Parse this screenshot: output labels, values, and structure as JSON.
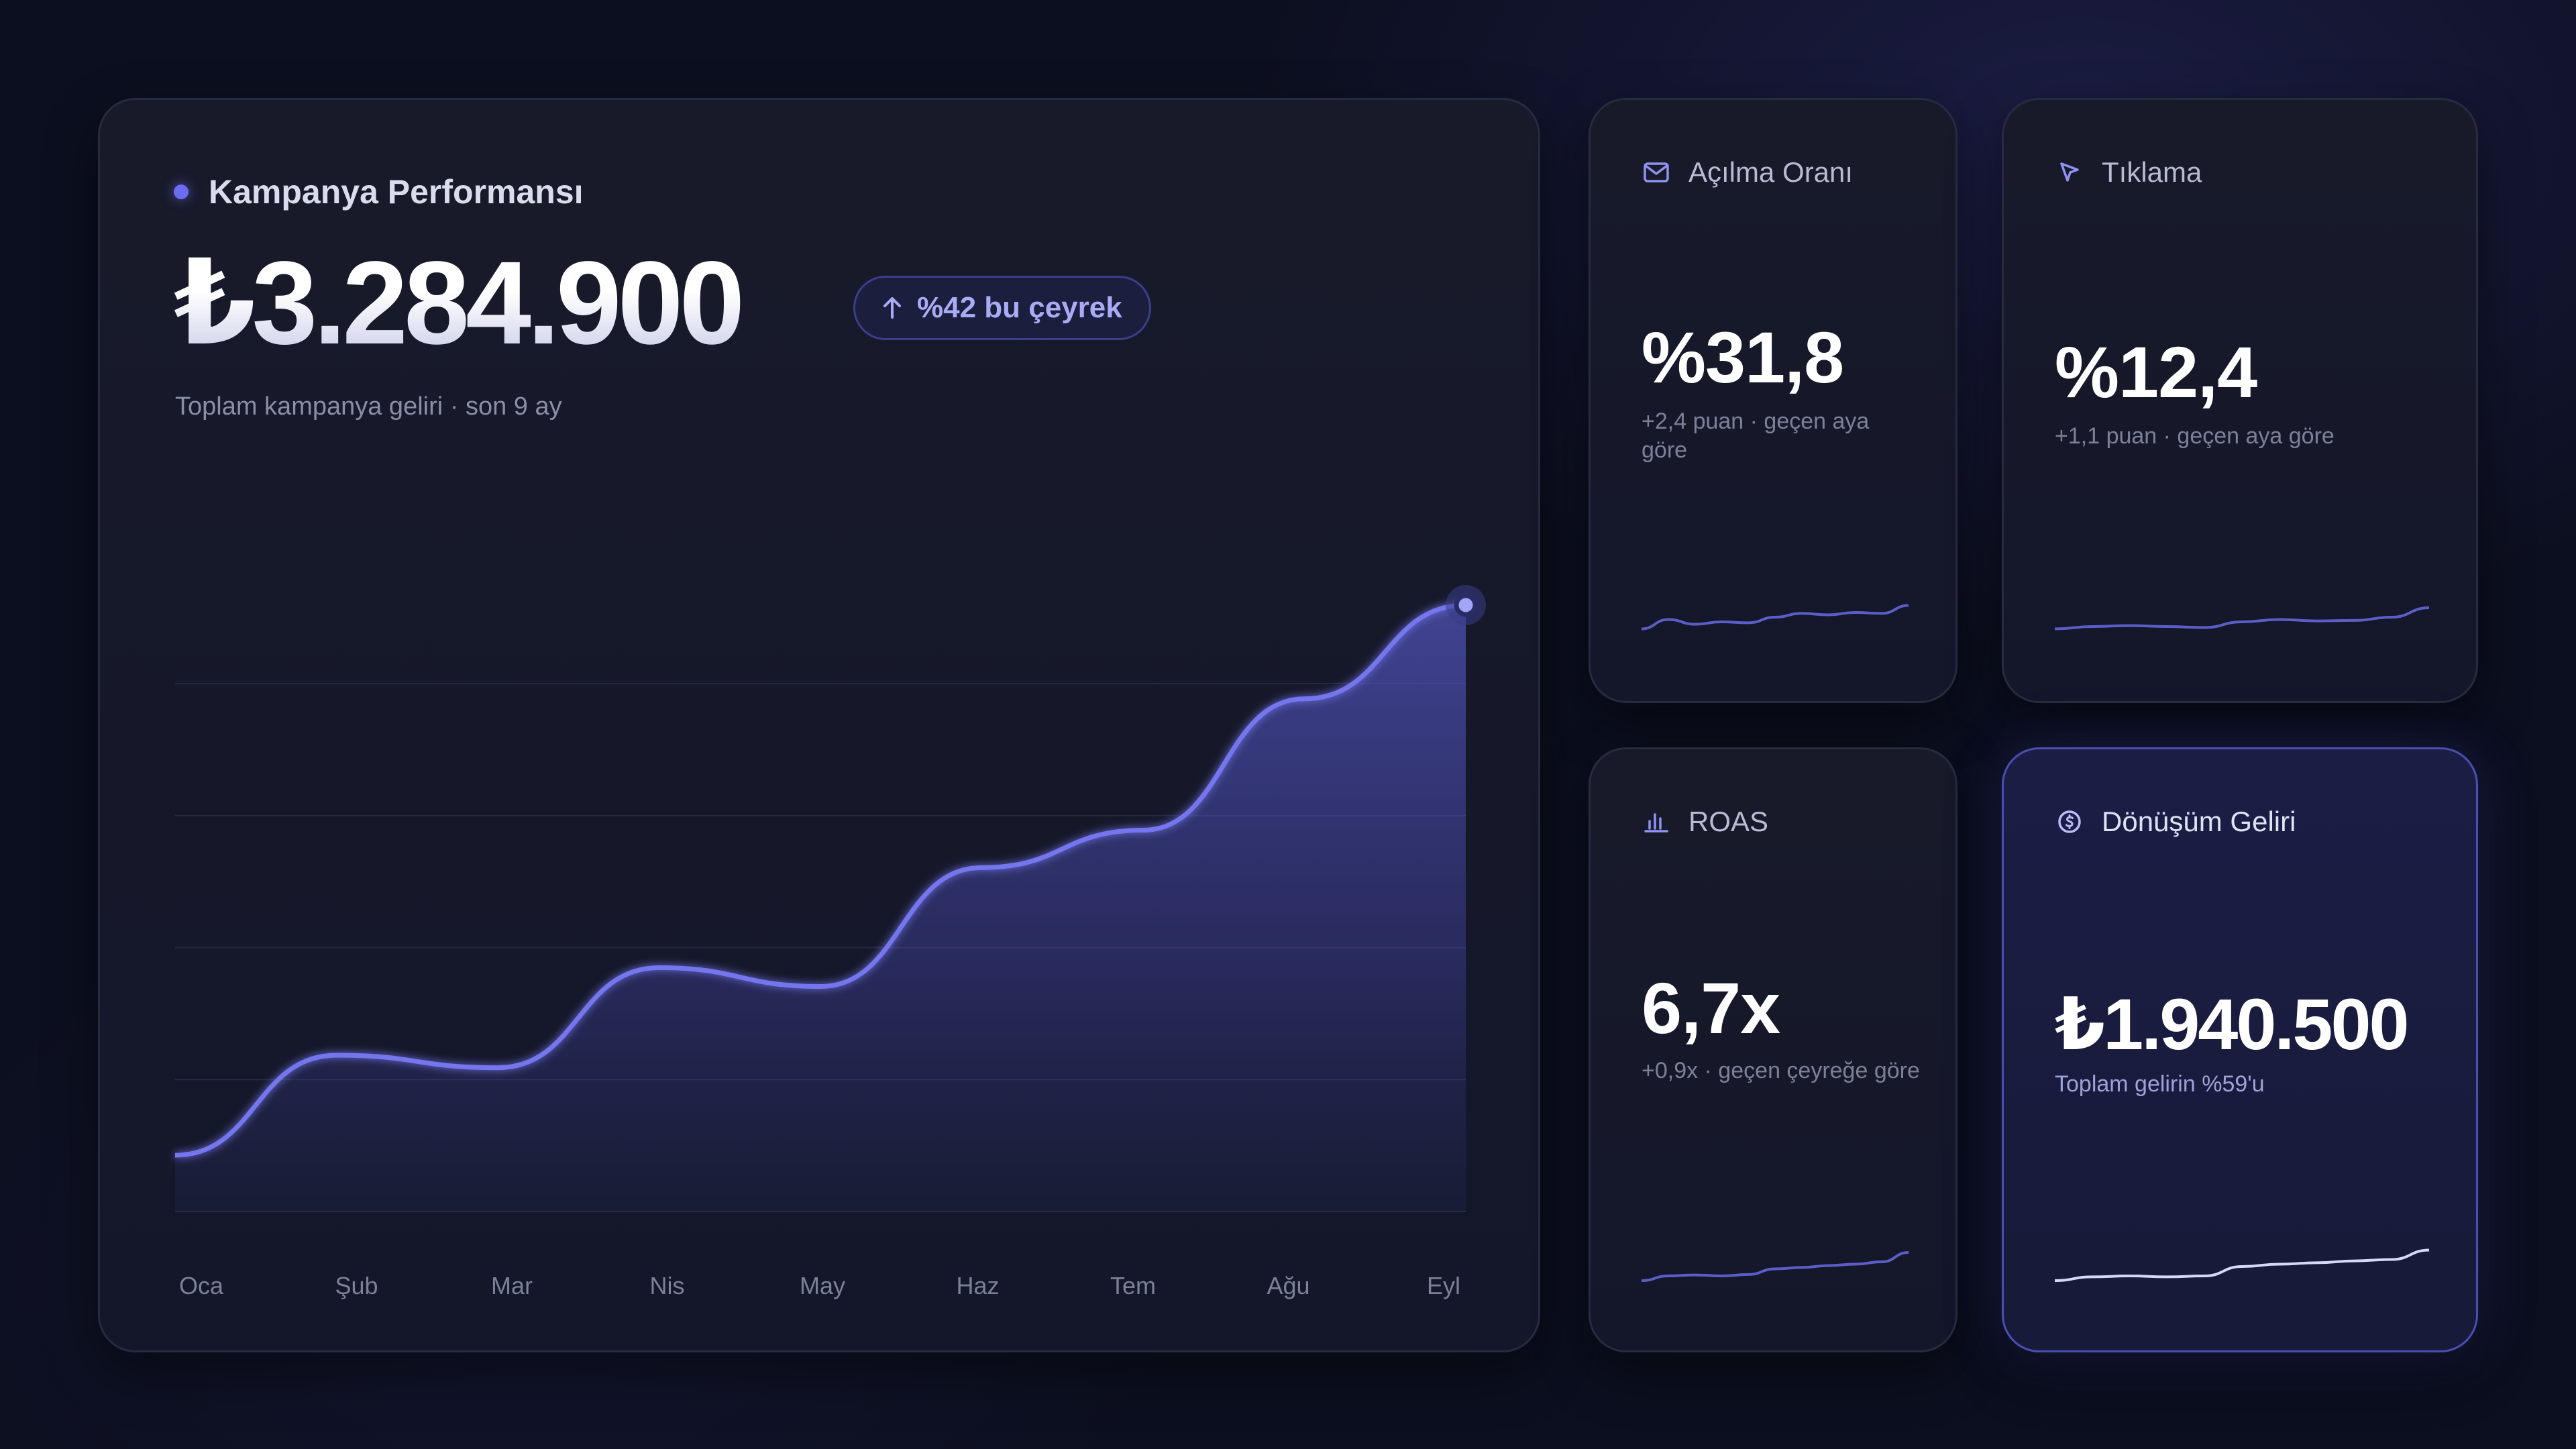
{
  "main": {
    "title": "Kampanya Performansı",
    "value": "₺3.284.900",
    "trend_badge": "%42 bu çeyrek",
    "subtitle": "Toplam kampanya geliri · son 9 ay",
    "accent_color": "#6c6cf2"
  },
  "chart_data": {
    "type": "area",
    "categories": [
      "Oca",
      "Şub",
      "Mar",
      "Nis",
      "May",
      "Haz",
      "Tem",
      "Ağu",
      "Eyl"
    ],
    "values": [
      0.09,
      0.25,
      0.23,
      0.39,
      0.36,
      0.55,
      0.61,
      0.82,
      0.97
    ],
    "ylim": [
      0,
      1
    ],
    "grid": true,
    "highlight_last_point": true
  },
  "kpis": {
    "open_rate": {
      "title": "Açılma Oranı",
      "icon": "mail-icon",
      "value": "%31,8",
      "sub": "+2,4 puan · geçen aya göre",
      "sparkline": [
        0.25,
        0.45,
        0.35,
        0.4,
        0.38,
        0.5,
        0.58,
        0.55,
        0.6,
        0.58,
        0.75
      ]
    },
    "clicks": {
      "title": "Tıklama",
      "icon": "cursor-icon",
      "value": "%12,4",
      "sub": "+1,1 puan · geçen aya göre",
      "sparkline": [
        0.25,
        0.3,
        0.32,
        0.3,
        0.28,
        0.4,
        0.45,
        0.42,
        0.43,
        0.5,
        0.7
      ]
    },
    "roas": {
      "title": "ROAS",
      "icon": "bar-chart-icon",
      "value": "6,7x",
      "sub": "+0,9x · geçen çeyreğe göre",
      "sparkline": [
        0.2,
        0.3,
        0.32,
        0.3,
        0.33,
        0.45,
        0.48,
        0.52,
        0.55,
        0.6,
        0.8
      ]
    },
    "conversion_revenue": {
      "title": "Dönüşüm Geliri",
      "icon": "dollar-circle-icon",
      "value": "₺1.940.500",
      "sub": "Toplam gelirin %59'u",
      "sparkline": [
        0.2,
        0.28,
        0.3,
        0.28,
        0.3,
        0.5,
        0.55,
        0.58,
        0.62,
        0.65,
        0.85
      ]
    }
  }
}
